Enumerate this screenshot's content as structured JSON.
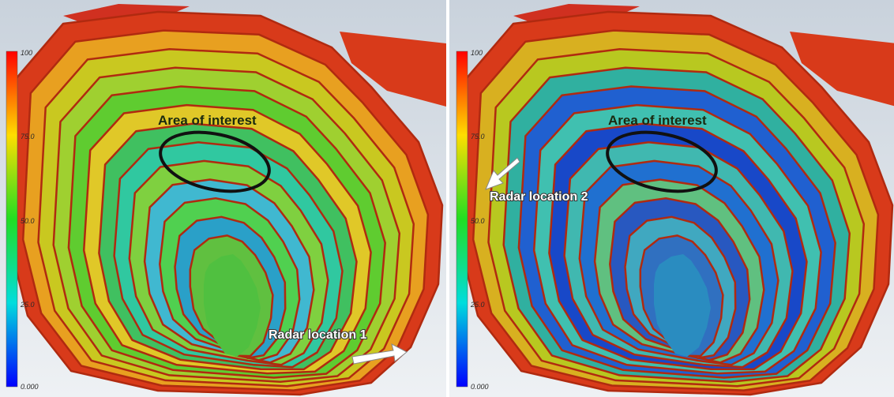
{
  "panels": [
    {
      "scale_labels": [
        "100",
        "75.0",
        "50.0",
        "25.0",
        "0.000"
      ],
      "area_label": "Area of interest",
      "radar_label": "Radar location 1"
    },
    {
      "scale_labels": [
        "100",
        "75.0",
        "50.0",
        "25.0",
        "0.000"
      ],
      "area_label": "Area of interest",
      "radar_label": "Radar location 2"
    }
  ]
}
